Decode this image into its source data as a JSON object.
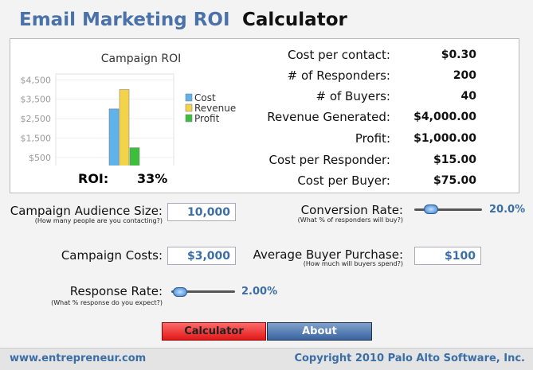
{
  "header": {
    "title_main": "Email Marketing ROI",
    "title_accent": "Calculator"
  },
  "chart_data": {
    "type": "bar",
    "title": "Campaign ROI",
    "series": [
      {
        "name": "Cost",
        "color": "#5fb2ea",
        "values": [
          3000
        ]
      },
      {
        "name": "Revenue",
        "color": "#f2d34a",
        "values": [
          4000
        ]
      },
      {
        "name": "Profit",
        "color": "#3dbf3d",
        "values": [
          1000
        ]
      }
    ],
    "ylim": [
      0,
      4800
    ],
    "yticks": [
      {
        "value": 500,
        "label": "$500"
      },
      {
        "value": 1500,
        "label": "$1,500"
      },
      {
        "value": 2500,
        "label": "$2,500"
      },
      {
        "value": 3500,
        "label": "$3,500"
      },
      {
        "value": 4500,
        "label": "$4,500"
      }
    ],
    "legend": "right"
  },
  "roi": {
    "label": "ROI:",
    "value": "33%"
  },
  "results": [
    {
      "label": "Cost per contact:",
      "value": "$0.30"
    },
    {
      "label": "# of Responders:",
      "value": "200"
    },
    {
      "label": "# of Buyers:",
      "value": "40"
    },
    {
      "label": "Revenue Generated:",
      "value": "$4,000.00"
    },
    {
      "label": "Profit:",
      "value": "$1,000.00"
    },
    {
      "label": "Cost per Responder:",
      "value": "$15.00"
    },
    {
      "label": "Cost per Buyer:",
      "value": "$75.00"
    }
  ],
  "inputs": {
    "audience": {
      "label": "Campaign Audience Size:",
      "hint": "(How many people are you contacting?)",
      "value": "10,000"
    },
    "costs": {
      "label": "Campaign Costs:",
      "value": "$3,000"
    },
    "response": {
      "label": "Response Rate:",
      "hint": "(What % response do you expect?)",
      "value": "2.00%"
    },
    "conversion": {
      "label": "Conversion Rate:",
      "hint": "(What % of responders will buy?)",
      "value": "20.0%"
    },
    "purchase": {
      "label": "Average Buyer Purchase:",
      "hint": "(How much will buyers spend?)",
      "value": "$100"
    }
  },
  "buttons": [
    "Calculator",
    "About"
  ],
  "footer": {
    "left": "www.entrepreneur.com",
    "right": "Copyright 2010 Palo Alto Software, Inc."
  }
}
